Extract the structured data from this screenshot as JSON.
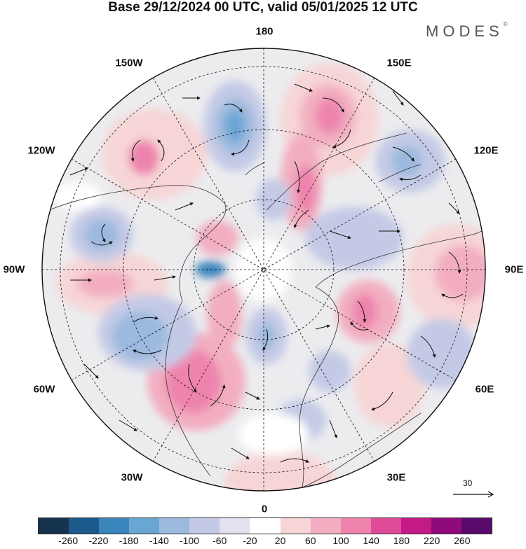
{
  "title": "Base 29/12/2024 00 UTC, valid 05/01/2025 12 UTC",
  "logo": "MODES",
  "logo_mark": "©",
  "longitude_labels": [
    "180",
    "150E",
    "120E",
    "90E",
    "60E",
    "30E",
    "0",
    "30W",
    "60W",
    "90W",
    "120W",
    "150W"
  ],
  "reference_vector_label": "30",
  "colorbar": {
    "labels": [
      "-260",
      "-220",
      "-180",
      "-140",
      "-100",
      "-60",
      "-20",
      "20",
      "60",
      "100",
      "140",
      "180",
      "220",
      "260"
    ],
    "colors": [
      "#15324f",
      "#1d5a8c",
      "#3a86bc",
      "#6aa6d4",
      "#9cb9de",
      "#c4cae6",
      "#e3e0ef",
      "#ffffff",
      "#f7d5d6",
      "#f2aec0",
      "#ee84ad",
      "#e04b98",
      "#c41a86",
      "#8f0a7a",
      "#5a0a6a"
    ]
  }
}
